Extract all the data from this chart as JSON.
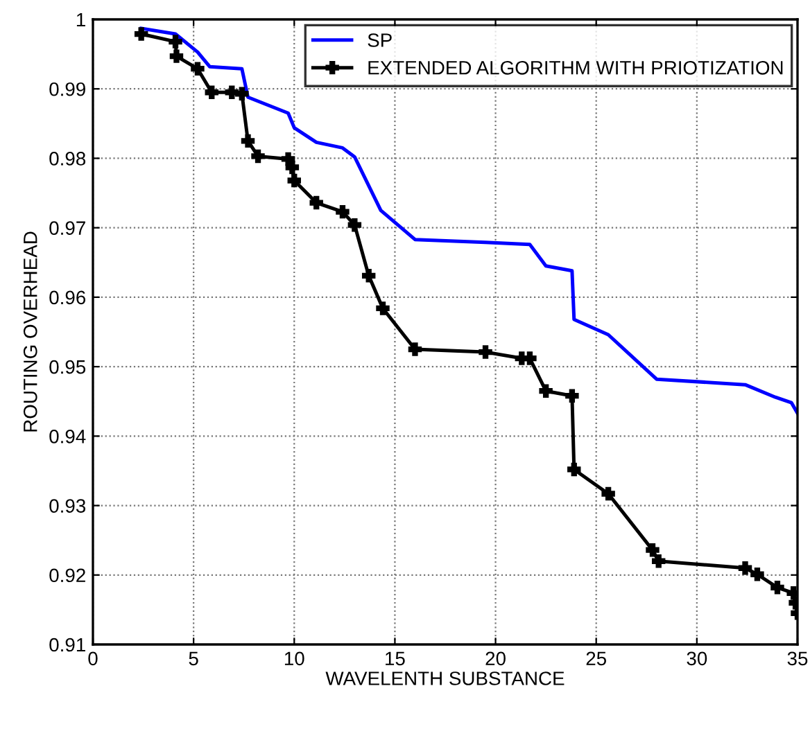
{
  "chart_data": {
    "type": "line",
    "xlabel": "WAVELENTH SUBSTANCE",
    "ylabel": "ROUTING OVERHEAD",
    "xlim": [
      0,
      35
    ],
    "xticks": [
      0,
      5,
      10,
      15,
      20,
      25,
      30,
      35
    ],
    "ylim": [
      0.91,
      1
    ],
    "yticks": [
      0.91,
      0.92,
      0.93,
      0.94,
      0.95,
      0.96,
      0.97,
      0.98,
      0.99,
      1
    ],
    "grid": true,
    "legend": "top right",
    "series": [
      {
        "name": "SP",
        "color": "#0000ff",
        "marker": "none",
        "x": [
          2.4,
          4.1,
          5.2,
          5.8,
          7.4,
          7.7,
          9.7,
          10.0,
          11.1,
          12.4,
          13.0,
          14.3,
          16.0,
          19.5,
          21.7,
          22.5,
          23.8,
          23.9,
          25.6,
          28.0,
          32.4,
          33.9,
          34.7,
          35.0
        ],
        "values": [
          0.9987,
          0.9979,
          0.9953,
          0.9932,
          0.9929,
          0.9888,
          0.9865,
          0.9844,
          0.9823,
          0.9815,
          0.9802,
          0.9725,
          0.9683,
          0.9679,
          0.9676,
          0.9645,
          0.9638,
          0.9568,
          0.9546,
          0.9482,
          0.9474,
          0.9456,
          0.9448,
          0.9433
        ]
      },
      {
        "name": "EXTENDED ALGORITHM WITH PRIOTIZATION",
        "color": "#000000",
        "marker": "cross",
        "x": [
          2.4,
          4.1,
          4.15,
          5.2,
          5.9,
          6.9,
          7.4,
          7.7,
          8.2,
          9.7,
          9.9,
          10.0,
          11.1,
          12.4,
          13.0,
          13.7,
          14.4,
          16.0,
          19.5,
          21.3,
          21.7,
          22.5,
          23.8,
          23.9,
          25.6,
          27.8,
          28.1,
          32.4,
          33.0,
          34.0,
          34.8,
          34.9,
          35.0
        ],
        "values": [
          0.9979,
          0.9968,
          0.9947,
          0.9929,
          0.9895,
          0.9895,
          0.9893,
          0.9825,
          0.9803,
          0.9799,
          0.9787,
          0.9768,
          0.9736,
          0.9723,
          0.9704,
          0.9631,
          0.9584,
          0.9525,
          0.9521,
          0.9512,
          0.9512,
          0.9465,
          0.9458,
          0.9352,
          0.9317,
          0.9236,
          0.922,
          0.921,
          0.9201,
          0.9182,
          0.9174,
          0.916,
          0.9145
        ]
      }
    ]
  }
}
